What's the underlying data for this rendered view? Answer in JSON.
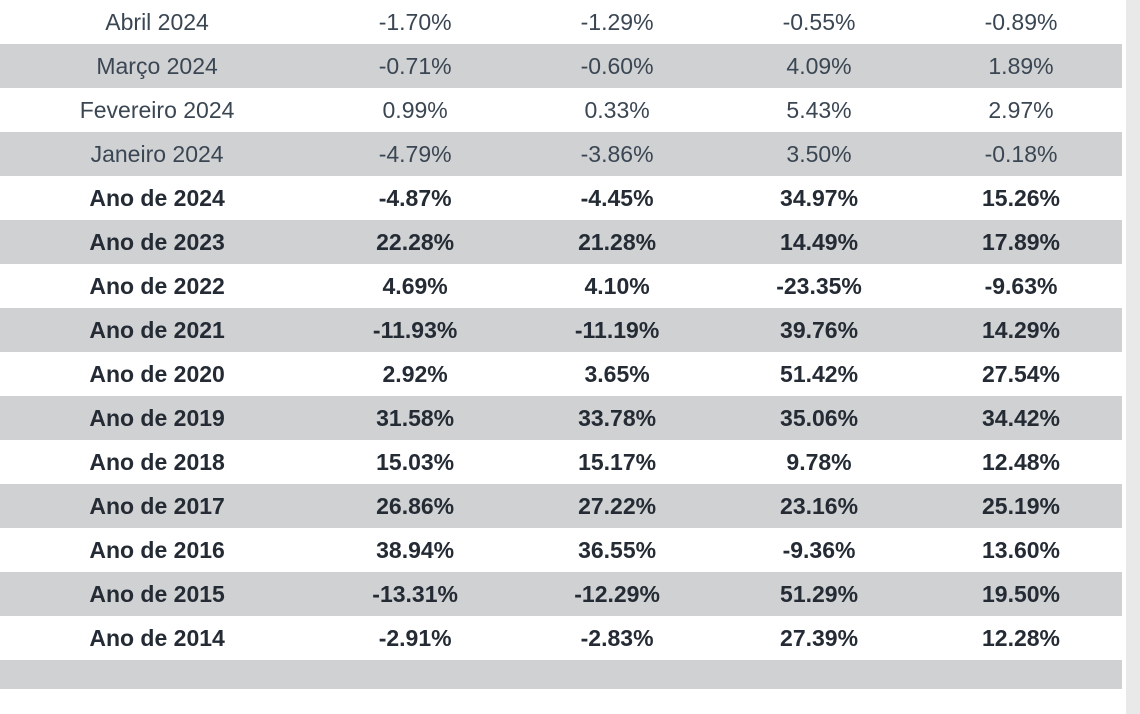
{
  "table": {
    "colors": {
      "row_alt_bg": "#cfd1d3",
      "row_plain_bg": "#ffffff",
      "text_regular": "#3b4653",
      "text_bold": "#242b34",
      "right_edge": "#e9e9e9"
    },
    "font": {
      "family": "Segoe UI, Arial, sans-serif",
      "size_pt": 17,
      "bold_weight": 700
    },
    "column_widths_pct": [
      28,
      18,
      18,
      18,
      18
    ],
    "rows": [
      {
        "label": "Abril 2024",
        "v1": "-1.70%",
        "v2": "-1.29%",
        "v3": "-0.55%",
        "v4": "-0.89%",
        "bold": false,
        "alt": false
      },
      {
        "label": "Março 2024",
        "v1": "-0.71%",
        "v2": "-0.60%",
        "v3": "4.09%",
        "v4": "1.89%",
        "bold": false,
        "alt": true
      },
      {
        "label": "Fevereiro 2024",
        "v1": "0.99%",
        "v2": "0.33%",
        "v3": "5.43%",
        "v4": "2.97%",
        "bold": false,
        "alt": false
      },
      {
        "label": "Janeiro 2024",
        "v1": "-4.79%",
        "v2": "-3.86%",
        "v3": "3.50%",
        "v4": "-0.18%",
        "bold": false,
        "alt": true
      },
      {
        "label": "Ano de 2024",
        "v1": "-4.87%",
        "v2": "-4.45%",
        "v3": "34.97%",
        "v4": "15.26%",
        "bold": true,
        "alt": false
      },
      {
        "label": "Ano de 2023",
        "v1": "22.28%",
        "v2": "21.28%",
        "v3": "14.49%",
        "v4": "17.89%",
        "bold": true,
        "alt": true
      },
      {
        "label": "Ano de 2022",
        "v1": "4.69%",
        "v2": "4.10%",
        "v3": "-23.35%",
        "v4": "-9.63%",
        "bold": true,
        "alt": false
      },
      {
        "label": "Ano de 2021",
        "v1": "-11.93%",
        "v2": "-11.19%",
        "v3": "39.76%",
        "v4": "14.29%",
        "bold": true,
        "alt": true
      },
      {
        "label": "Ano de 2020",
        "v1": "2.92%",
        "v2": "3.65%",
        "v3": "51.42%",
        "v4": "27.54%",
        "bold": true,
        "alt": false
      },
      {
        "label": "Ano de 2019",
        "v1": "31.58%",
        "v2": "33.78%",
        "v3": "35.06%",
        "v4": "34.42%",
        "bold": true,
        "alt": true
      },
      {
        "label": "Ano de 2018",
        "v1": "15.03%",
        "v2": "15.17%",
        "v3": "9.78%",
        "v4": "12.48%",
        "bold": true,
        "alt": false
      },
      {
        "label": "Ano de 2017",
        "v1": "26.86%",
        "v2": "27.22%",
        "v3": "23.16%",
        "v4": "25.19%",
        "bold": true,
        "alt": true
      },
      {
        "label": "Ano de 2016",
        "v1": "38.94%",
        "v2": "36.55%",
        "v3": "-9.36%",
        "v4": "13.60%",
        "bold": true,
        "alt": false
      },
      {
        "label": "Ano de 2015",
        "v1": "-13.31%",
        "v2": "-12.29%",
        "v3": "51.29%",
        "v4": "19.50%",
        "bold": true,
        "alt": true
      },
      {
        "label": "Ano de 2014",
        "v1": "-2.91%",
        "v2": "-2.83%",
        "v3": "27.39%",
        "v4": "12.28%",
        "bold": true,
        "alt": false
      }
    ]
  }
}
